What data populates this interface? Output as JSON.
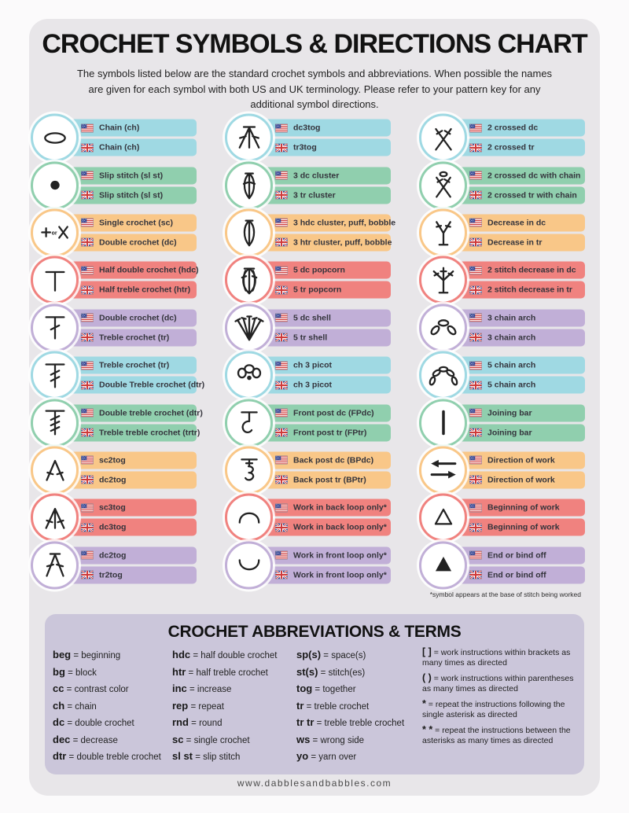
{
  "page": {
    "title": "CROCHET SYMBOLS & DIRECTIONS CHART",
    "subtitle": "The symbols listed below are the standard crochet symbols and abbreviations. When possible the names are given for each symbol with both US and UK terminology. Please refer to your pattern key for any additional symbol directions.",
    "footnote": "*symbol appears at the base of stitch being worked",
    "footer_url": "www.dabblesandbabbles.com"
  },
  "palette": {
    "cyan": "#9fd9e3",
    "green": "#90cfae",
    "orange": "#f9c788",
    "red": "#f0827f",
    "purple": "#c1afd7",
    "card_bg": "#e8e6e9",
    "panel_bg": "#cbc6da",
    "us_flag_blue": "#2e3f8f",
    "flag_red": "#cf3a3a",
    "text_dark": "#34343c"
  },
  "symbol_columns": [
    {
      "cells": [
        {
          "symbol": "chain-symbol",
          "color": "cyan",
          "us": "Chain (ch)",
          "uk": "Chain (ch)"
        },
        {
          "symbol": "slip-stitch-symbol",
          "color": "green",
          "us": "Slip stitch (sl st)",
          "uk": "Slip stitch (sl st)"
        },
        {
          "symbol": "single-crochet-symbol",
          "color": "orange",
          "us": "Single crochet (sc)",
          "uk": "Double crochet (dc)"
        },
        {
          "symbol": "half-double-crochet-symbol",
          "color": "red",
          "us": "Half double crochet (hdc)",
          "uk": "Half treble crochet (htr)"
        },
        {
          "symbol": "double-crochet-symbol",
          "color": "purple",
          "us": "Double crochet (dc)",
          "uk": "Treble crochet (tr)"
        },
        {
          "symbol": "treble-crochet-symbol",
          "color": "cyan",
          "us": "Treble crochet (tr)",
          "uk": "Double Treble crochet (dtr)"
        },
        {
          "symbol": "double-treble-crochet-symbol",
          "color": "green",
          "us": "Double treble crochet (dtr)",
          "uk": "Treble treble crochet (trtr)"
        },
        {
          "symbol": "sc2tog-symbol",
          "color": "orange",
          "us": "sc2tog",
          "uk": "dc2tog"
        },
        {
          "symbol": "sc3tog-symbol",
          "color": "red",
          "us": "sc3tog",
          "uk": "dc3tog"
        },
        {
          "symbol": "dc2tog-symbol",
          "color": "purple",
          "us": "dc2tog",
          "uk": "tr2tog"
        }
      ]
    },
    {
      "cells": [
        {
          "symbol": "dc3tog-symbol",
          "color": "cyan",
          "us": "dc3tog",
          "uk": "tr3tog"
        },
        {
          "symbol": "cluster-symbol",
          "color": "green",
          "us": "3 dc cluster",
          "uk": "3 tr cluster"
        },
        {
          "symbol": "puff-symbol",
          "color": "orange",
          "us": "3 hdc cluster, puff, bobble",
          "uk": "3 htr cluster, puff, bobble"
        },
        {
          "symbol": "popcorn-symbol",
          "color": "red",
          "us": "5 dc popcorn",
          "uk": "5 tr popcorn"
        },
        {
          "symbol": "shell-symbol",
          "color": "purple",
          "us": "5 dc shell",
          "uk": "5 tr shell"
        },
        {
          "symbol": "picot-symbol",
          "color": "cyan",
          "us": "ch 3 picot",
          "uk": "ch 3 picot"
        },
        {
          "symbol": "front-post-symbol",
          "color": "green",
          "us": "Front post dc (FPdc)",
          "uk": "Front post tr (FPtr)"
        },
        {
          "symbol": "back-post-symbol",
          "color": "orange",
          "us": "Back post dc (BPdc)",
          "uk": "Back post tr (BPtr)"
        },
        {
          "symbol": "back-loop-symbol",
          "color": "red",
          "us": "Work in back loop only*",
          "uk": "Work in back loop only*"
        },
        {
          "symbol": "front-loop-symbol",
          "color": "purple",
          "us": "Work in front loop only*",
          "uk": "Work in front loop only*"
        }
      ]
    },
    {
      "cells": [
        {
          "symbol": "crossed-dc-symbol",
          "color": "cyan",
          "us": "2 crossed dc",
          "uk": "2 crossed tr"
        },
        {
          "symbol": "crossed-dc-chain-symbol",
          "color": "green",
          "us": "2 crossed dc with chain",
          "uk": "2 crossed tr with chain"
        },
        {
          "symbol": "decrease-symbol",
          "color": "orange",
          "us": "Decrease in dc",
          "uk": "Decrease in tr"
        },
        {
          "symbol": "two-stitch-decrease-symbol",
          "color": "red",
          "us": "2 stitch decrease in dc",
          "uk": "2 stitch decrease in tr"
        },
        {
          "symbol": "chain-arch-3-symbol",
          "color": "purple",
          "us": "3 chain arch",
          "uk": "3 chain arch"
        },
        {
          "symbol": "chain-arch-5-symbol",
          "color": "cyan",
          "us": "5 chain arch",
          "uk": "5 chain arch"
        },
        {
          "symbol": "joining-bar-symbol",
          "color": "green",
          "us": "Joining bar",
          "uk": "Joining bar"
        },
        {
          "symbol": "direction-of-work-symbol",
          "color": "orange",
          "us": "Direction of work",
          "uk": "Direction of work"
        },
        {
          "symbol": "beginning-of-work-symbol",
          "color": "red",
          "us": "Beginning of work",
          "uk": "Beginning of work"
        },
        {
          "symbol": "end-bind-off-symbol",
          "color": "purple",
          "us": "End or bind off",
          "uk": "End or bind off"
        }
      ]
    }
  ],
  "abbreviations": {
    "title": "CROCHET ABBREVIATIONS & TERMS",
    "eq": "=",
    "columns": [
      [
        {
          "abbr": "beg",
          "def": "beginning"
        },
        {
          "abbr": "bg",
          "def": "block"
        },
        {
          "abbr": "cc",
          "def": "contrast color"
        },
        {
          "abbr": "ch",
          "def": "chain"
        },
        {
          "abbr": "dc",
          "def": "double crochet"
        },
        {
          "abbr": "dec",
          "def": "decrease"
        },
        {
          "abbr": "dtr",
          "def": "double treble crochet"
        }
      ],
      [
        {
          "abbr": "hdc",
          "def": "half double crochet"
        },
        {
          "abbr": "htr",
          "def": "half treble crochet"
        },
        {
          "abbr": "inc",
          "def": "increase"
        },
        {
          "abbr": "rep",
          "def": "repeat"
        },
        {
          "abbr": "rnd",
          "def": "round"
        },
        {
          "abbr": "sc",
          "def": "single crochet"
        },
        {
          "abbr": "sl st",
          "def": "slip stitch"
        }
      ],
      [
        {
          "abbr": "sp(s)",
          "def": "space(s)"
        },
        {
          "abbr": "st(s)",
          "def": "stitch(es)"
        },
        {
          "abbr": "tog",
          "def": "together"
        },
        {
          "abbr": "tr",
          "def": "treble crochet"
        },
        {
          "abbr": "tr tr",
          "def": "treble treble crochet"
        },
        {
          "abbr": "ws",
          "def": "wrong side"
        },
        {
          "abbr": "yo",
          "def": "yarn over"
        }
      ],
      [
        {
          "abbr": "[ ]",
          "def": "work instructions within brackets as many times as directed"
        },
        {
          "abbr": "( )",
          "def": "work instructions within parentheses as many times as directed"
        },
        {
          "abbr": "*",
          "def": "repeat the instructions following the single asterisk as directed"
        },
        {
          "abbr": "* *",
          "def": "repeat the instructions between the asterisks as many times as directed"
        }
      ]
    ]
  }
}
